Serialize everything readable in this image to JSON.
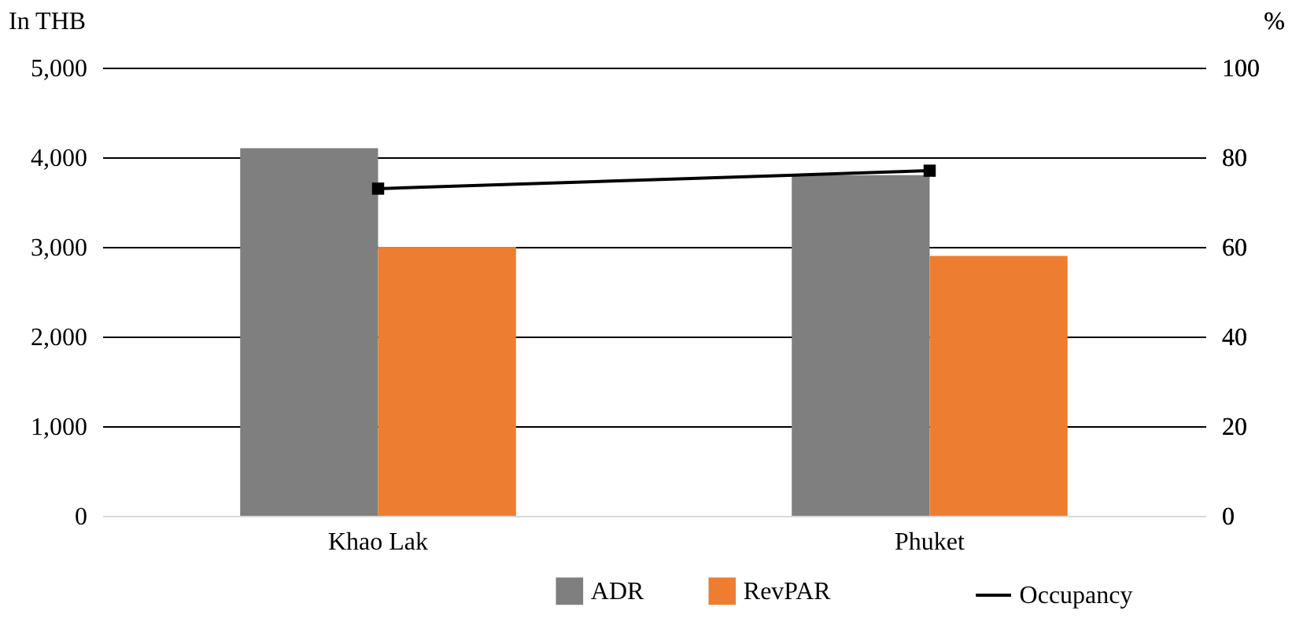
{
  "chart_data": {
    "type": "bar",
    "ylabel": "In THB",
    "y2label": "%",
    "categories": [
      "Khao Lak",
      "Phuket"
    ],
    "series": [
      {
        "name": "ADR",
        "color": "#7f7f7f",
        "values": [
          4100,
          3800
        ]
      },
      {
        "name": "RevPAR",
        "color": "#ed7d31",
        "values": [
          3000,
          2900
        ]
      },
      {
        "name": "Occupancy",
        "type": "line",
        "axis": "y2",
        "color": "#000000",
        "marker": "square",
        "values": [
          73,
          77
        ]
      }
    ],
    "ylim": [
      0,
      5000
    ],
    "yticks": [
      {
        "value": 0,
        "label": "0"
      },
      {
        "value": 1000,
        "label": "1,000"
      },
      {
        "value": 2000,
        "label": "2,000"
      },
      {
        "value": 3000,
        "label": "3,000"
      },
      {
        "value": 4000,
        "label": "4,000"
      },
      {
        "value": 5000,
        "label": "5,000"
      }
    ],
    "y2lim": [
      0,
      100
    ],
    "y2ticks": [
      0,
      20,
      40,
      60,
      80,
      100
    ],
    "grid": "y",
    "legend": "bottom right"
  }
}
